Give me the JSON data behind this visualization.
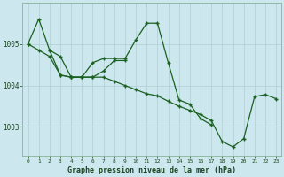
{
  "background_color": "#cce8ee",
  "grid_color": "#b0cdd4",
  "line_color": "#1a6020",
  "title": "Graphe pression niveau de la mer (hPa)",
  "hours": [
    0,
    1,
    2,
    3,
    4,
    5,
    6,
    7,
    8,
    9,
    10,
    11,
    12,
    13,
    14,
    15,
    16,
    17,
    18,
    19,
    20,
    21,
    22,
    23
  ],
  "series1_x": [
    0,
    1,
    2,
    3,
    4,
    5,
    6,
    7,
    8,
    9
  ],
  "series1_y": [
    1005.0,
    1005.6,
    1004.85,
    1004.25,
    1004.2,
    1004.2,
    1004.2,
    1004.35,
    1004.6,
    1004.6
  ],
  "series2_x": [
    2,
    3,
    4,
    5,
    6,
    7,
    8,
    9,
    10,
    11,
    12,
    13,
    14,
    15,
    16,
    17
  ],
  "series2_y": [
    1004.85,
    1004.7,
    1004.2,
    1004.2,
    1004.55,
    1004.65,
    1004.65,
    1004.65,
    1005.1,
    1005.5,
    1005.5,
    1004.55,
    1003.65,
    1003.55,
    1003.2,
    1003.05
  ],
  "series3_x": [
    0,
    1,
    2,
    3,
    4,
    5,
    6,
    7,
    8,
    9,
    10,
    11,
    12,
    13,
    14,
    15,
    16,
    17,
    18,
    19,
    20,
    21,
    22,
    23
  ],
  "series3_y": [
    1005.0,
    1004.85,
    1004.7,
    1004.25,
    1004.2,
    1004.2,
    1004.2,
    1004.2,
    1004.1,
    1004.0,
    1003.9,
    1003.8,
    1003.75,
    1003.62,
    1003.5,
    1003.4,
    1003.3,
    1003.15,
    1002.65,
    1002.52,
    1002.72,
    1003.73,
    1003.78,
    1003.68
  ],
  "ylim": [
    1002.3,
    1006.0
  ],
  "yticks": [
    1003.0,
    1004.0,
    1005.0
  ],
  "figsize": [
    3.2,
    2.0
  ],
  "dpi": 100
}
